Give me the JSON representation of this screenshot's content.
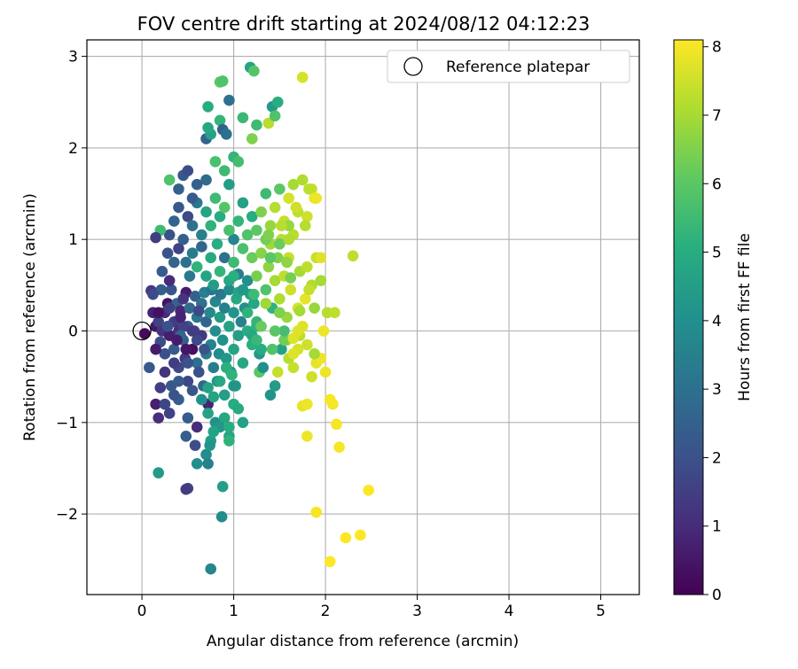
{
  "chart_data": {
    "type": "scatter",
    "title": "FOV centre drift starting at 2024/08/12 04:12:23",
    "xlabel": "Angular distance from reference (arcmin)",
    "ylabel": "Rotation from reference (arcmin)",
    "xlim": [
      -0.6,
      5.42
    ],
    "ylim": [
      -2.88,
      3.18
    ],
    "xticks": [
      0,
      1,
      2,
      3,
      4,
      5
    ],
    "yticks": [
      -2,
      -1,
      0,
      1,
      2,
      3
    ],
    "grid": true,
    "legend": {
      "label": "Reference platepar",
      "placement": "top-right",
      "marker": "open circle"
    },
    "reference_point": {
      "x": 0,
      "y": 0
    },
    "colorbar": {
      "label": "Hours from first FF file",
      "colormap": "viridis",
      "range": [
        0,
        8.1
      ],
      "ticks": [
        0,
        1,
        2,
        3,
        4,
        5,
        6,
        7,
        8
      ]
    },
    "points": [
      [
        0.03,
        -0.03,
        0.2
      ],
      [
        0.08,
        -0.4,
        2.2
      ],
      [
        0.1,
        0.44,
        1.3
      ],
      [
        0.12,
        0.2,
        0.8
      ],
      [
        0.15,
        0.05,
        0.5
      ],
      [
        0.18,
        0.1,
        1.6
      ],
      [
        0.2,
        -0.12,
        1.9
      ],
      [
        0.21,
        0.45,
        2.4
      ],
      [
        0.22,
        0.0,
        1.2
      ],
      [
        0.25,
        -0.25,
        2.0
      ],
      [
        0.25,
        0.2,
        1.0
      ],
      [
        0.28,
        0.3,
        0.4
      ],
      [
        0.3,
        -0.05,
        0.7
      ],
      [
        0.32,
        0.45,
        2.1
      ],
      [
        0.35,
        -0.2,
        2.3
      ],
      [
        0.35,
        0.1,
        1.5
      ],
      [
        0.38,
        0.3,
        2.6
      ],
      [
        0.4,
        -0.4,
        1.8
      ],
      [
        0.4,
        0.0,
        1.1
      ],
      [
        0.42,
        0.22,
        0.9
      ],
      [
        0.45,
        -0.1,
        2.5
      ],
      [
        0.47,
        -0.3,
        1.4
      ],
      [
        0.48,
        0.42,
        0.6
      ],
      [
        0.5,
        0.05,
        2.2
      ],
      [
        0.5,
        -0.55,
        1.7
      ],
      [
        0.52,
        0.25,
        2.8
      ],
      [
        0.55,
        -0.2,
        0.3
      ],
      [
        0.57,
        0.0,
        1.9
      ],
      [
        0.58,
        0.38,
        2.5
      ],
      [
        0.6,
        -0.35,
        2.9
      ],
      [
        0.6,
        0.15,
        3.2
      ],
      [
        0.62,
        -0.45,
        2.0
      ],
      [
        0.65,
        0.3,
        3.0
      ],
      [
        0.65,
        -0.05,
        1.3
      ],
      [
        0.67,
        -0.6,
        2.7
      ],
      [
        0.68,
        0.42,
        3.5
      ],
      [
        0.7,
        -0.25,
        3.3
      ],
      [
        0.7,
        0.1,
        2.6
      ],
      [
        0.72,
        -0.8,
        0.8
      ],
      [
        0.74,
        0.2,
        3.8
      ],
      [
        0.75,
        -0.15,
        3.6
      ],
      [
        0.76,
        0.45,
        3.1
      ],
      [
        0.78,
        -0.4,
        3.4
      ],
      [
        0.8,
        0.0,
        4.0
      ],
      [
        0.8,
        0.32,
        3.7
      ],
      [
        0.82,
        -0.55,
        4.2
      ],
      [
        0.84,
        -0.25,
        3.9
      ],
      [
        0.85,
        0.15,
        4.4
      ],
      [
        0.86,
        0.4,
        3.2
      ],
      [
        0.88,
        -0.1,
        4.1
      ],
      [
        0.9,
        -0.7,
        4.5
      ],
      [
        0.9,
        0.25,
        3.5
      ],
      [
        0.92,
        -0.3,
        4.3
      ],
      [
        0.95,
        0.05,
        4.6
      ],
      [
        0.95,
        0.45,
        3.8
      ],
      [
        0.97,
        -0.45,
        4.0
      ],
      [
        1.0,
        -0.2,
        4.7
      ],
      [
        1.0,
        0.2,
        4.2
      ],
      [
        1.02,
        -0.6,
        4.4
      ],
      [
        1.03,
        0.35,
        4.9
      ],
      [
        1.05,
        -0.05,
        4.5
      ],
      [
        1.08,
        0.1,
        3.6
      ],
      [
        1.1,
        -0.35,
        4.8
      ],
      [
        1.12,
        0.25,
        4.1
      ],
      [
        1.15,
        0.0,
        5.0
      ],
      [
        1.18,
        0.4,
        4.6
      ],
      [
        1.2,
        -0.15,
        5.1
      ],
      [
        1.22,
        0.3,
        4.8
      ],
      [
        1.25,
        0.05,
        5.2
      ],
      [
        1.28,
        -0.25,
        4.3
      ],
      [
        0.6,
        -0.1,
        1.8
      ],
      [
        0.45,
        0.05,
        1.6
      ],
      [
        0.35,
        -0.35,
        1.5
      ],
      [
        0.25,
        -0.45,
        1.2
      ],
      [
        0.55,
        -0.65,
        2.2
      ],
      [
        0.2,
        -0.62,
        1.5
      ],
      [
        0.15,
        -0.8,
        0.7
      ],
      [
        0.4,
        -0.75,
        2.4
      ],
      [
        0.3,
        -0.9,
        1.6
      ],
      [
        0.18,
        -0.95,
        1.1
      ],
      [
        0.5,
        -0.95,
        2.3
      ],
      [
        0.65,
        -0.75,
        4.0
      ],
      [
        0.72,
        -0.9,
        4.6
      ],
      [
        0.8,
        -1.0,
        4.1
      ],
      [
        0.9,
        -0.95,
        4.8
      ],
      [
        1.0,
        -0.8,
        5.0
      ],
      [
        0.95,
        -1.15,
        4.7
      ],
      [
        0.85,
        -1.05,
        4.3
      ],
      [
        0.75,
        -1.2,
        4.5
      ],
      [
        0.6,
        -1.05,
        1.0
      ],
      [
        0.48,
        -1.15,
        2.4
      ],
      [
        0.58,
        -1.25,
        1.9
      ],
      [
        0.7,
        -1.35,
        3.9
      ],
      [
        0.74,
        -1.25,
        4.2
      ],
      [
        0.95,
        -1.05,
        5.0
      ],
      [
        1.1,
        -1.0,
        4.6
      ],
      [
        0.78,
        -1.1,
        4.7
      ],
      [
        0.72,
        -1.45,
        3.5
      ],
      [
        0.6,
        -1.45,
        4.0
      ],
      [
        0.5,
        -1.72,
        1.8
      ],
      [
        0.48,
        -1.73,
        1.4
      ],
      [
        0.18,
        -1.55,
        4.4
      ],
      [
        0.88,
        -1.7,
        4.5
      ],
      [
        0.87,
        -2.03,
        3.9
      ],
      [
        0.75,
        -2.6,
        3.7
      ],
      [
        0.95,
        -1.2,
        5.2
      ],
      [
        0.15,
        -0.2,
        0.6
      ],
      [
        0.18,
        0.2,
        0.4
      ],
      [
        0.12,
        0.4,
        1.8
      ],
      [
        0.28,
        0.05,
        2.0
      ],
      [
        0.42,
        -0.05,
        2.7
      ],
      [
        0.48,
        -0.2,
        0.5
      ],
      [
        0.3,
        0.55,
        1.0
      ],
      [
        0.22,
        0.65,
        2.3
      ],
      [
        0.35,
        0.75,
        2.6
      ],
      [
        0.28,
        0.85,
        2.1
      ],
      [
        0.4,
        0.9,
        1.6
      ],
      [
        0.48,
        0.75,
        3.0
      ],
      [
        0.52,
        0.6,
        3.2
      ],
      [
        0.55,
        0.85,
        3.3
      ],
      [
        0.6,
        0.7,
        5.2
      ],
      [
        0.65,
        0.92,
        2.7
      ],
      [
        0.7,
        0.6,
        4.7
      ],
      [
        0.75,
        0.8,
        4.9
      ],
      [
        0.78,
        0.5,
        4.4
      ],
      [
        0.82,
        0.95,
        5.0
      ],
      [
        0.85,
        0.65,
        5.3
      ],
      [
        0.9,
        0.8,
        3.0
      ],
      [
        0.95,
        0.55,
        4.8
      ],
      [
        1.0,
        0.75,
        5.5
      ],
      [
        1.05,
        0.62,
        3.4
      ],
      [
        1.1,
        0.9,
        5.7
      ],
      [
        1.15,
        0.55,
        4.0
      ],
      [
        1.2,
        0.8,
        6.2
      ],
      [
        1.22,
        0.4,
        5.5
      ],
      [
        1.25,
        0.6,
        6.4
      ],
      [
        1.3,
        0.85,
        6.6
      ],
      [
        1.35,
        0.45,
        5.8
      ],
      [
        1.38,
        0.7,
        6.7
      ],
      [
        1.4,
        0.95,
        6.9
      ],
      [
        1.42,
        0.25,
        5.2
      ],
      [
        1.45,
        0.55,
        7.0
      ],
      [
        1.48,
        0.8,
        6.5
      ],
      [
        1.5,
        0.35,
        7.1
      ],
      [
        1.52,
        1.0,
        7.2
      ],
      [
        1.55,
        0.6,
        7.3
      ],
      [
        1.58,
        0.15,
        6.8
      ],
      [
        1.6,
        0.8,
        7.4
      ],
      [
        1.62,
        0.45,
        7.5
      ],
      [
        1.65,
        1.05,
        7.2
      ],
      [
        1.7,
        0.25,
        7.6
      ],
      [
        1.72,
        0.65,
        7.0
      ],
      [
        1.75,
        0.05,
        7.7
      ],
      [
        1.78,
        0.35,
        7.8
      ],
      [
        1.8,
        0.7,
        7.3
      ],
      [
        1.85,
        0.5,
        7.1
      ],
      [
        1.88,
        0.25,
        6.8
      ],
      [
        1.9,
        0.8,
        7.4
      ],
      [
        1.95,
        0.55,
        7.0
      ],
      [
        1.98,
        0.0,
        7.9
      ],
      [
        2.02,
        0.2,
        7.2
      ],
      [
        1.0,
        1.0,
        3.7
      ],
      [
        1.05,
        1.2,
        5.3
      ],
      [
        1.1,
        1.4,
        4.6
      ],
      [
        1.15,
        1.05,
        5.8
      ],
      [
        1.2,
        1.25,
        5.0
      ],
      [
        1.25,
        1.1,
        6.0
      ],
      [
        1.3,
        1.3,
        6.5
      ],
      [
        1.35,
        1.5,
        5.5
      ],
      [
        1.4,
        1.15,
        6.8
      ],
      [
        1.45,
        1.35,
        7.2
      ],
      [
        1.5,
        1.55,
        6.0
      ],
      [
        1.55,
        1.2,
        7.4
      ],
      [
        1.6,
        1.45,
        7.6
      ],
      [
        1.65,
        1.6,
        7.0
      ],
      [
        1.7,
        1.3,
        7.3
      ],
      [
        1.75,
        1.65,
        7.1
      ],
      [
        1.8,
        1.25,
        7.5
      ],
      [
        1.85,
        1.55,
        7.4
      ],
      [
        1.9,
        1.45,
        7.9
      ],
      [
        0.3,
        1.05,
        2.0
      ],
      [
        0.35,
        1.2,
        2.6
      ],
      [
        0.4,
        1.35,
        2.2
      ],
      [
        0.45,
        1.0,
        2.5
      ],
      [
        0.5,
        1.25,
        1.8
      ],
      [
        0.55,
        1.15,
        3.0
      ],
      [
        0.6,
        1.4,
        3.2
      ],
      [
        0.65,
        1.05,
        3.5
      ],
      [
        0.7,
        1.3,
        4.7
      ],
      [
        0.75,
        1.15,
        5.2
      ],
      [
        0.8,
        1.45,
        5.5
      ],
      [
        0.85,
        1.25,
        5.0
      ],
      [
        0.9,
        1.35,
        5.9
      ],
      [
        0.95,
        1.1,
        5.7
      ],
      [
        0.2,
        1.1,
        5.5
      ],
      [
        0.15,
        1.02,
        1.5
      ],
      [
        0.3,
        1.65,
        5.8
      ],
      [
        0.4,
        1.55,
        2.5
      ],
      [
        0.45,
        1.7,
        2.2
      ],
      [
        0.5,
        1.75,
        1.9
      ],
      [
        0.55,
        1.45,
        2.3
      ],
      [
        0.6,
        1.6,
        2.5
      ],
      [
        0.7,
        1.65,
        2.8
      ],
      [
        0.8,
        1.85,
        5.7
      ],
      [
        0.9,
        1.75,
        5.5
      ],
      [
        0.95,
        1.6,
        4.5
      ],
      [
        1.0,
        1.9,
        5.3
      ],
      [
        1.05,
        1.85,
        5.6
      ],
      [
        0.7,
        2.1,
        2.6
      ],
      [
        0.75,
        2.15,
        4.6
      ],
      [
        0.72,
        2.22,
        4.8
      ],
      [
        0.85,
        2.3,
        5.3
      ],
      [
        0.88,
        2.2,
        2.5
      ],
      [
        0.92,
        2.15,
        3.0
      ],
      [
        1.1,
        2.33,
        5.4
      ],
      [
        1.2,
        2.1,
        6.5
      ],
      [
        1.25,
        2.25,
        5.5
      ],
      [
        1.38,
        2.27,
        7.2
      ],
      [
        1.42,
        2.45,
        4.4
      ],
      [
        1.45,
        2.35,
        5.8
      ],
      [
        1.48,
        2.5,
        5.0
      ],
      [
        0.72,
        2.45,
        5.0
      ],
      [
        0.85,
        2.72,
        6.0
      ],
      [
        0.88,
        2.73,
        5.8
      ],
      [
        0.95,
        2.52,
        3.0
      ],
      [
        1.18,
        2.88,
        4.7
      ],
      [
        1.22,
        2.84,
        5.9
      ],
      [
        1.75,
        2.77,
        7.6
      ],
      [
        0.72,
        -0.62,
        4.6
      ],
      [
        0.78,
        -0.72,
        4.7
      ],
      [
        0.85,
        -0.55,
        4.9
      ],
      [
        0.92,
        -0.4,
        5.1
      ],
      [
        0.98,
        -0.48,
        5.2
      ],
      [
        1.0,
        -0.6,
        4.2
      ],
      [
        1.05,
        -0.85,
        4.9
      ],
      [
        1.3,
        -0.2,
        5.0
      ],
      [
        1.4,
        -0.7,
        4.2
      ],
      [
        1.45,
        -0.6,
        4.4
      ],
      [
        1.52,
        -0.2,
        4.6
      ],
      [
        1.6,
        -0.3,
        7.2
      ],
      [
        1.65,
        -0.4,
        7.4
      ],
      [
        1.7,
        -0.2,
        7.6
      ],
      [
        1.75,
        -0.82,
        7.8
      ],
      [
        1.8,
        -0.8,
        7.9
      ],
      [
        1.85,
        -0.5,
        7.5
      ],
      [
        1.9,
        -0.35,
        7.8
      ],
      [
        1.95,
        -0.3,
        7.9
      ],
      [
        2.0,
        -0.45,
        7.9
      ],
      [
        2.05,
        -0.75,
        8.0
      ],
      [
        2.08,
        -0.8,
        8.0
      ],
      [
        2.12,
        -1.02,
        8.0
      ],
      [
        2.15,
        -1.27,
        8.0
      ],
      [
        1.8,
        -1.15,
        7.9
      ],
      [
        1.9,
        -1.98,
        8.0
      ],
      [
        2.05,
        -2.52,
        8.1
      ],
      [
        2.22,
        -2.26,
        8.1
      ],
      [
        2.38,
        -2.23,
        8.1
      ],
      [
        2.47,
        -1.74,
        8.1
      ],
      [
        1.58,
        -0.1,
        7.0
      ],
      [
        1.72,
        -0.05,
        7.3
      ],
      [
        1.65,
        -0.25,
        7.7
      ],
      [
        1.48,
        -0.45,
        7.4
      ],
      [
        1.2,
        -0.05,
        4.8
      ],
      [
        1.25,
        0.1,
        5.3
      ],
      [
        1.28,
        -0.45,
        6.0
      ],
      [
        1.55,
        -0.1,
        6.3
      ],
      [
        1.32,
        -0.4,
        4.0
      ],
      [
        1.42,
        -0.2,
        5.8
      ],
      [
        1.65,
        -0.08,
        7.7
      ],
      [
        1.55,
        0.0,
        5.6
      ],
      [
        1.7,
        0.0,
        7.7
      ],
      [
        1.8,
        -0.15,
        7.5
      ],
      [
        1.5,
        0.95,
        6.2
      ],
      [
        1.6,
        1.15,
        6.8
      ],
      [
        1.35,
        1.0,
        6.3
      ],
      [
        1.4,
        0.8,
        6.0
      ],
      [
        1.88,
        -0.25,
        7.0
      ],
      [
        1.82,
        0.45,
        7.4
      ],
      [
        1.72,
        0.22,
        7.0
      ],
      [
        1.62,
        0.58,
        6.4
      ],
      [
        1.58,
        0.75,
        6.7
      ],
      [
        1.5,
        0.2,
        6.5
      ],
      [
        1.45,
        0.0,
        6.0
      ],
      [
        1.35,
        0.3,
        6.9
      ],
      [
        1.3,
        0.05,
        6.2
      ],
      [
        1.25,
        -0.1,
        5.4
      ],
      [
        2.1,
        0.2,
        7.3
      ],
      [
        2.3,
        0.82,
        7.3
      ],
      [
        1.95,
        0.8,
        7.7
      ],
      [
        1.88,
        1.45,
        7.9
      ],
      [
        1.82,
        1.55,
        7.3
      ],
      [
        1.78,
        1.15,
        7.2
      ],
      [
        1.68,
        1.35,
        7.5
      ],
      [
        1.6,
        1.0,
        7.1
      ],
      [
        1.52,
        1.15,
        7.2
      ],
      [
        1.38,
        1.05,
        6.5
      ],
      [
        1.05,
        0.42,
        4.7
      ],
      [
        1.0,
        0.6,
        5.1
      ],
      [
        1.1,
        0.45,
        4.3
      ],
      [
        1.15,
        0.2,
        5.2
      ],
      [
        0.55,
        0.0,
        1.4
      ],
      [
        0.62,
        0.22,
        1.8
      ],
      [
        0.68,
        -0.2,
        2.1
      ],
      [
        0.5,
        -0.35,
        2.0
      ],
      [
        0.4,
        -0.55,
        2.3
      ],
      [
        0.35,
        -0.7,
        2.1
      ],
      [
        0.25,
        -0.8,
        1.7
      ],
      [
        0.32,
        -0.6,
        2.2
      ],
      [
        0.45,
        0.35,
        1.2
      ],
      [
        0.42,
        0.15,
        0.8
      ],
      [
        0.38,
        -0.1,
        0.6
      ],
      [
        0.3,
        0.25,
        1.5
      ]
    ]
  }
}
